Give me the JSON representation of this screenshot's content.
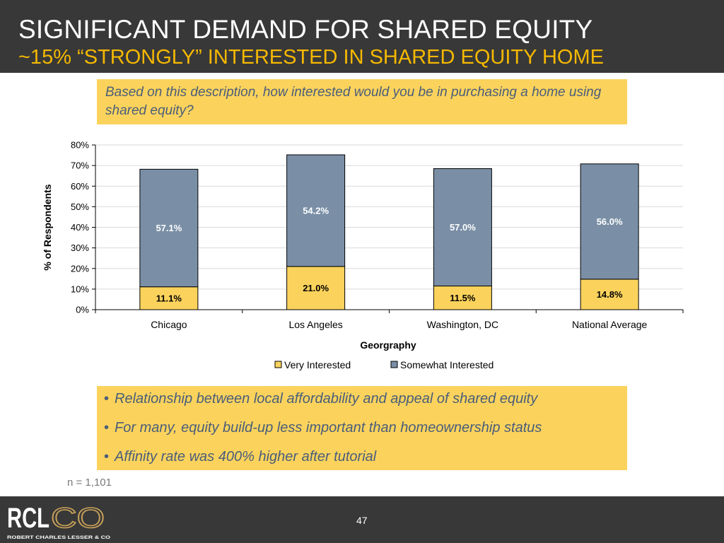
{
  "slide": {
    "title": "SIGNIFICANT DEMAND FOR SHARED EQUITY",
    "subtitle": "~15% “STRONGLY” INTERESTED IN SHARED EQUITY HOME",
    "question": "Based on this description, how interested would you be in purchasing a home using shared equity?",
    "bullets": [
      "Relationship between local affordability and appeal of shared equity",
      "For many, equity build-up less important than homeownership status",
      "Affinity rate was 400% higher after tutorial"
    ],
    "note": "n = 1,101",
    "page_number": "47",
    "logo": {
      "main": "RCLCO",
      "tagline": "ROBERT CHARLES LESSER & CO"
    }
  },
  "colors": {
    "header_bg": "#383838",
    "subtitle": "#f5b800",
    "callout_bg": "#fbd35c",
    "callout_text": "#4a5d7a",
    "very_interested": "#fbd35c",
    "somewhat_interested": "#7a8fa6"
  },
  "chart_data": {
    "type": "bar",
    "stacked": true,
    "categories": [
      "Chicago",
      "Los Angeles",
      "Washington, DC",
      "National Average"
    ],
    "series": [
      {
        "name": "Very Interested",
        "values": [
          11.1,
          21.0,
          11.5,
          14.8
        ],
        "labels": [
          "11.1%",
          "21.0%",
          "11.5%",
          "14.8%"
        ]
      },
      {
        "name": "Somewhat Interested",
        "values": [
          57.1,
          54.2,
          57.0,
          56.0
        ],
        "labels": [
          "57.1%",
          "54.2%",
          "57.0%",
          "56.0%"
        ]
      }
    ],
    "xlabel": "Georgraphy",
    "ylabel": "% of Respondents",
    "ylim": [
      0,
      80
    ],
    "yticks": [
      "0%",
      "10%",
      "20%",
      "30%",
      "40%",
      "50%",
      "60%",
      "70%",
      "80%"
    ],
    "grid": true,
    "legend": "bottom"
  }
}
